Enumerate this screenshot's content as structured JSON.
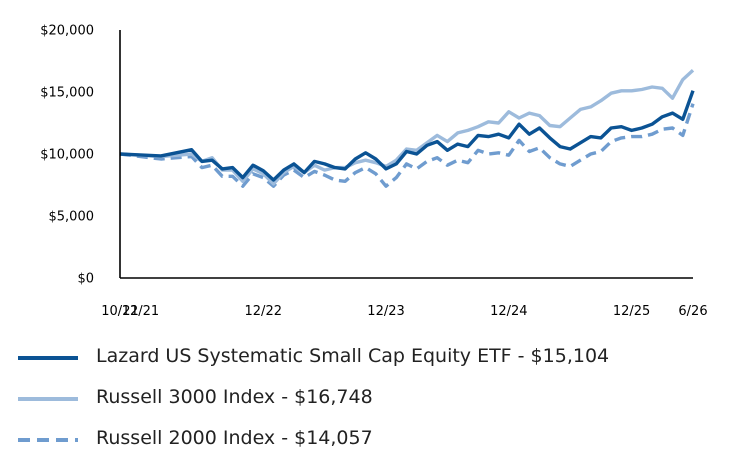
{
  "chart_data": {
    "type": "line",
    "yticks": [
      "$0",
      "$5,000",
      "$10,000",
      "$15,000",
      "$20,000"
    ],
    "ylim": [
      0,
      20000
    ],
    "xticks": [
      "10/21",
      "12/21",
      "12/22",
      "12/23",
      "12/24",
      "12/25",
      "6/26"
    ],
    "grid": false,
    "legend_position": "bottom",
    "series": [
      {
        "name": "Lazard US Systematic Small Cap Equity ETF - $15,104",
        "color": "#0b5394",
        "style": "solid",
        "x": [
          "10/21",
          "2/22",
          "5/22",
          "6/22",
          "7/22",
          "8/22",
          "9/22",
          "10/22",
          "11/22",
          "12/22",
          "1/23",
          "2/23",
          "3/23",
          "4/23",
          "5/23",
          "6/23",
          "7/23",
          "8/23",
          "9/23",
          "10/23",
          "11/23",
          "12/23",
          "1/24",
          "2/24",
          "3/24",
          "4/24",
          "5/24",
          "6/24",
          "7/24",
          "8/24",
          "9/24",
          "10/24",
          "11/24",
          "12/24",
          "1/25",
          "2/25",
          "3/25",
          "4/25",
          "5/25",
          "6/25",
          "7/25",
          "8/25",
          "9/25",
          "10/25",
          "11/25",
          "12/25",
          "1/26",
          "2/26",
          "3/26",
          "4/26",
          "5/26",
          "6/26"
        ],
        "values": [
          10000,
          9850,
          10350,
          9400,
          9500,
          8800,
          8900,
          8100,
          9100,
          8650,
          7900,
          8700,
          9200,
          8500,
          9400,
          9200,
          8900,
          8800,
          9600,
          10100,
          9600,
          8800,
          9200,
          10200,
          10000,
          10700,
          11000,
          10300,
          10800,
          10600,
          11500,
          11400,
          11600,
          11300,
          12400,
          11600,
          12100,
          11300,
          10600,
          10400,
          10900,
          11400,
          11300,
          12100,
          12200,
          11900,
          12100,
          12400,
          13000,
          13300,
          12800,
          15104
        ]
      },
      {
        "name": "Russell 3000 Index - $16,748",
        "color": "#9dbbdc",
        "style": "solid",
        "x": [
          "10/21",
          "2/22",
          "5/22",
          "6/22",
          "7/22",
          "8/22",
          "9/22",
          "10/22",
          "11/22",
          "12/22",
          "1/23",
          "2/23",
          "3/23",
          "4/23",
          "5/23",
          "6/23",
          "7/23",
          "8/23",
          "9/23",
          "10/23",
          "11/23",
          "12/23",
          "1/24",
          "2/24",
          "3/24",
          "4/24",
          "5/24",
          "6/24",
          "7/24",
          "8/24",
          "9/24",
          "10/24",
          "11/24",
          "12/24",
          "1/25",
          "2/25",
          "3/25",
          "4/25",
          "5/25",
          "6/25",
          "7/25",
          "8/25",
          "9/25",
          "10/25",
          "11/25",
          "12/25",
          "1/26",
          "2/26",
          "3/26",
          "4/26",
          "5/26",
          "6/26"
        ],
        "values": [
          10000,
          9800,
          10000,
          9400,
          9700,
          8700,
          8700,
          7800,
          8800,
          8400,
          7600,
          8500,
          9000,
          8500,
          9100,
          8700,
          8900,
          8900,
          9300,
          9500,
          9300,
          9000,
          9500,
          10400,
          10300,
          10900,
          11500,
          11000,
          11700,
          11900,
          12200,
          12600,
          12500,
          13400,
          12900,
          13300,
          13100,
          12300,
          12200,
          12900,
          13600,
          13800,
          14300,
          14900,
          15100,
          15100,
          15200,
          15400,
          15300,
          14500,
          16000,
          16748
        ]
      },
      {
        "name": "Russell 2000 Index - $14,057",
        "color": "#6f9ccf",
        "style": "dashed",
        "x": [
          "10/21",
          "2/22",
          "5/22",
          "6/22",
          "7/22",
          "8/22",
          "9/22",
          "10/22",
          "11/22",
          "12/22",
          "1/23",
          "2/23",
          "3/23",
          "4/23",
          "5/23",
          "6/23",
          "7/23",
          "8/23",
          "9/23",
          "10/23",
          "11/23",
          "12/23",
          "1/24",
          "2/24",
          "3/24",
          "4/24",
          "5/24",
          "6/24",
          "7/24",
          "8/24",
          "9/24",
          "10/24",
          "11/24",
          "12/24",
          "1/25",
          "2/25",
          "3/25",
          "4/25",
          "5/25",
          "6/25",
          "7/25",
          "8/25",
          "9/25",
          "10/25",
          "11/25",
          "12/25",
          "1/26",
          "2/26",
          "3/26",
          "4/26",
          "5/26",
          "6/26"
        ],
        "values": [
          10000,
          9600,
          9800,
          8900,
          9100,
          8200,
          8200,
          7400,
          8400,
          8100,
          7400,
          8300,
          8700,
          8100,
          8600,
          8300,
          7900,
          7800,
          8500,
          8900,
          8400,
          7400,
          8100,
          9200,
          8800,
          9400,
          9700,
          9100,
          9500,
          9300,
          10300,
          10000,
          10100,
          9900,
          11100,
          10200,
          10500,
          9700,
          9200,
          9000,
          9500,
          10000,
          10200,
          11000,
          11300,
          11400,
          11400,
          11600,
          12000,
          12100,
          11500,
          14057
        ]
      }
    ]
  }
}
